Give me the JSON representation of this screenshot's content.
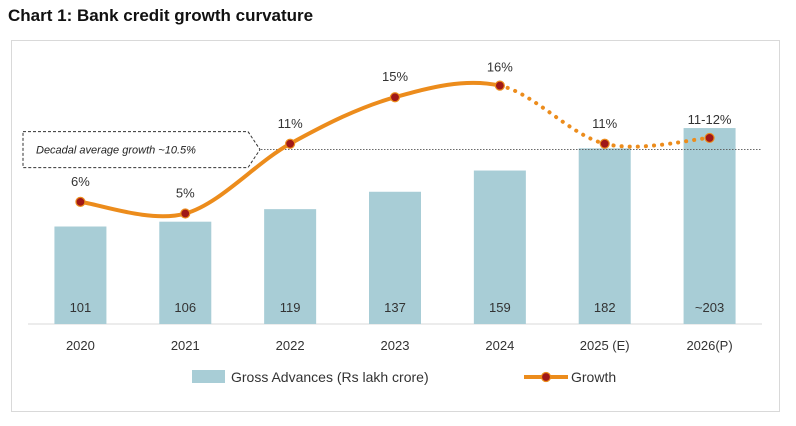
{
  "chart_data": {
    "type": "bar",
    "title": "Chart 1: Bank credit growth curvature",
    "categories": [
      "2020",
      "2021",
      "2022",
      "2023",
      "2024",
      "2025 (E)",
      "2026(P)"
    ],
    "series": [
      {
        "name": "Gross Advances (Rs lakh crore)",
        "type": "bar",
        "values": [
          101,
          106,
          119,
          137,
          159,
          182,
          203
        ],
        "labels": [
          "101",
          "106",
          "119",
          "137",
          "159",
          "182",
          "~203"
        ],
        "color": "#a8cdd6"
      },
      {
        "name": "Growth",
        "type": "line",
        "values": [
          6,
          5,
          11,
          15,
          16,
          11,
          11.5
        ],
        "labels": [
          "6%",
          "5%",
          "11%",
          "15%",
          "16%",
          "11%",
          "11-12%"
        ],
        "solid_until_index": 4,
        "color": "#ec8c1c",
        "marker_color": "#a01818"
      }
    ],
    "reference_line": {
      "value": 10.5,
      "label": "Decadal average growth ~10.5%"
    },
    "xlabel": "",
    "ylabel": "",
    "bar_axis_range": [
      0,
      230
    ],
    "growth_axis_range": [
      -4.5,
      17.6
    ],
    "legend_position": "bottom"
  }
}
